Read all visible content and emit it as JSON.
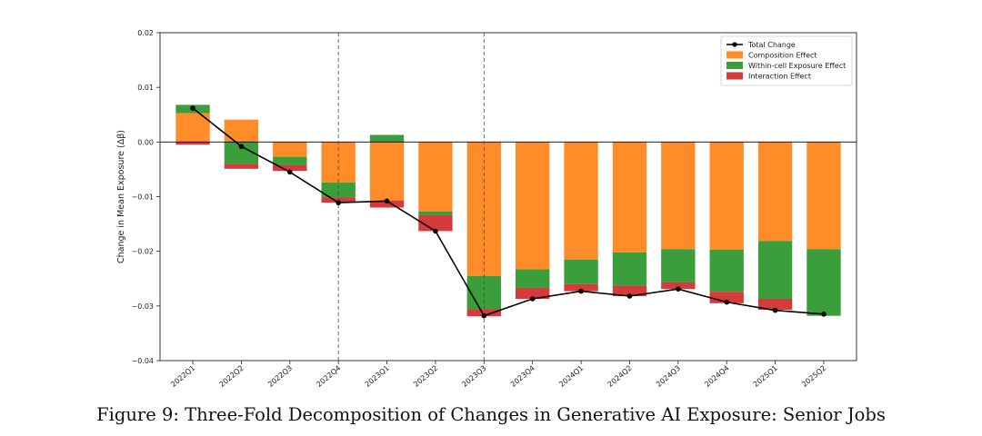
{
  "caption": "Figure 9: Three-Fold Decomposition of Changes in Generative AI Exposure: Senior Jobs",
  "chart_data": {
    "type": "bar",
    "stacked": true,
    "ylabel": "Change in Mean Exposure (Δβ)",
    "ylim": [
      -0.04,
      0.02
    ],
    "yticks": [
      0.02,
      0.01,
      0.0,
      -0.01,
      -0.02,
      -0.03,
      -0.04
    ],
    "ytick_labels": [
      "0.02",
      "0.01",
      "0.00",
      "−0.01",
      "−0.02",
      "−0.03",
      "−0.04"
    ],
    "categories": [
      "2022Q1",
      "2022Q2",
      "2022Q3",
      "2022Q4",
      "2023Q1",
      "2023Q2",
      "2023Q3",
      "2023Q4",
      "2024Q1",
      "2024Q2",
      "2024Q3",
      "2024Q4",
      "2025Q1",
      "2025Q2"
    ],
    "vlines_after": [
      "2022Q4",
      "2023Q3"
    ],
    "zero_line": true,
    "grid": false,
    "legend_position": "top-right",
    "series": [
      {
        "name": "Composition Effect",
        "kind": "bar",
        "color": "#ff8c28",
        "values": [
          0.0053,
          0.0041,
          -0.0027,
          -0.0074,
          -0.0107,
          -0.0127,
          -0.0245,
          -0.0233,
          -0.0215,
          -0.0202,
          -0.0196,
          -0.0197,
          -0.0181,
          -0.0196
        ]
      },
      {
        "name": "Within-cell Exposure Effect",
        "kind": "bar",
        "color": "#3a9e3a",
        "values": [
          0.0015,
          -0.004,
          -0.0015,
          -0.0027,
          0.0013,
          -0.0007,
          -0.0061,
          -0.0034,
          -0.0045,
          -0.0061,
          -0.0061,
          -0.0077,
          -0.0106,
          -0.0122
        ]
      },
      {
        "name": "Interaction Effect",
        "kind": "bar",
        "color": "#d63a3a",
        "values": [
          -0.0005,
          -0.0009,
          -0.0011,
          -0.001,
          -0.0013,
          -0.0029,
          -0.0013,
          -0.002,
          -0.0013,
          -0.0019,
          -0.0012,
          -0.0021,
          -0.002,
          0.0
        ]
      },
      {
        "name": "Total Change",
        "kind": "line",
        "color": "#000000",
        "values": [
          0.0062,
          -0.0008,
          -0.0055,
          -0.0111,
          -0.0108,
          -0.0163,
          -0.0318,
          -0.0287,
          -0.0273,
          -0.0282,
          -0.0269,
          -0.0293,
          -0.0308,
          -0.0315
        ]
      }
    ]
  }
}
